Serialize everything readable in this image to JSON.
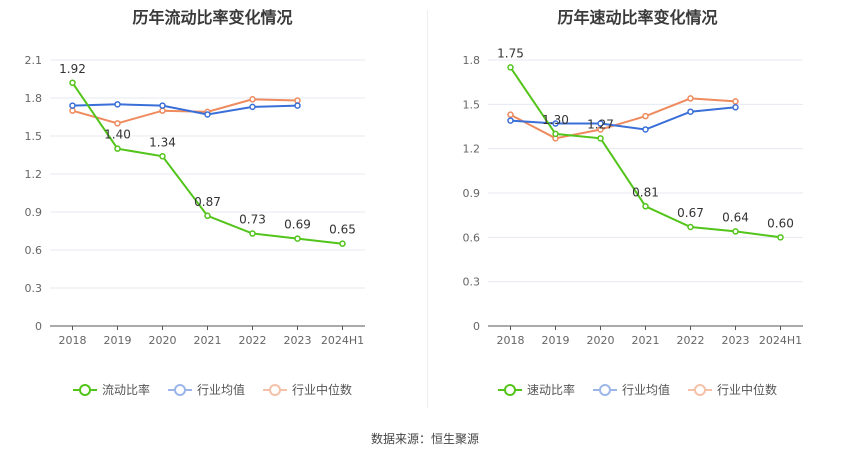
{
  "source": "数据来源：恒生聚源",
  "chart_data": [
    {
      "type": "line",
      "title": "历年流动比率变化情况",
      "categories": [
        "2018",
        "2019",
        "2020",
        "2021",
        "2022",
        "2023",
        "2024H1"
      ],
      "y_ticks": [
        "0",
        "0.3",
        "0.6",
        "0.9",
        "1.2",
        "1.5",
        "1.8",
        "2.1"
      ],
      "ylim": [
        0,
        2.1
      ],
      "grid": true,
      "legend_position": "bottom",
      "series": [
        {
          "name": "流动比率",
          "color": "#52c41a",
          "values": [
            1.92,
            1.4,
            1.34,
            0.87,
            0.73,
            0.69,
            0.65
          ],
          "labels": [
            "1.92",
            "1.40",
            "1.34",
            "0.87",
            "0.73",
            "0.69",
            "0.65"
          ]
        },
        {
          "name": "行业均值",
          "color": "#3a6fd8",
          "values": [
            1.74,
            1.75,
            1.74,
            1.67,
            1.73,
            1.74,
            null
          ]
        },
        {
          "name": "行业中位数",
          "color": "#ee8a5e",
          "values": [
            1.7,
            1.6,
            1.7,
            1.69,
            1.79,
            1.78,
            null
          ]
        }
      ]
    },
    {
      "type": "line",
      "title": "历年速动比率变化情况",
      "categories": [
        "2018",
        "2019",
        "2020",
        "2021",
        "2022",
        "2023",
        "2024H1"
      ],
      "y_ticks": [
        "0",
        "0.3",
        "0.6",
        "0.9",
        "1.2",
        "1.5",
        "1.8"
      ],
      "ylim": [
        0,
        1.8
      ],
      "grid": true,
      "legend_position": "bottom",
      "series": [
        {
          "name": "速动比率",
          "color": "#52c41a",
          "values": [
            1.75,
            1.3,
            1.27,
            0.81,
            0.67,
            0.64,
            0.6
          ],
          "labels": [
            "1.75",
            "1.30",
            "1.27",
            "0.81",
            "0.67",
            "0.64",
            "0.60"
          ]
        },
        {
          "name": "行业均值",
          "color": "#3a6fd8",
          "values": [
            1.39,
            1.37,
            1.37,
            1.33,
            1.45,
            1.48,
            null
          ]
        },
        {
          "name": "行业中位数",
          "color": "#ee8a5e",
          "values": [
            1.43,
            1.27,
            1.33,
            1.42,
            1.54,
            1.52,
            null
          ]
        }
      ]
    }
  ]
}
